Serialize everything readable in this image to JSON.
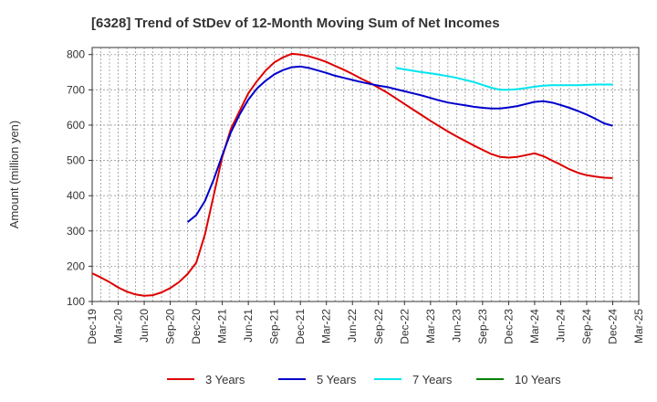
{
  "chart_data": {
    "type": "line",
    "title": "[6328]  Trend of StDev of 12-Month Moving Sum of Net Incomes",
    "ylabel": "Amount (million yen)",
    "xlabel": "",
    "ylim": [
      100,
      820
    ],
    "yticks": [
      100,
      200,
      300,
      400,
      500,
      600,
      700,
      800
    ],
    "grid": true,
    "legend_position": "bottom",
    "x_tick_labels": [
      "Dec-19",
      "Mar-20",
      "Jun-20",
      "Sep-20",
      "Dec-20",
      "Mar-21",
      "Jun-21",
      "Sep-21",
      "Dec-21",
      "Mar-22",
      "Jun-22",
      "Sep-22",
      "Dec-22",
      "Mar-23",
      "Jun-23",
      "Sep-23",
      "Dec-23",
      "Mar-24",
      "Jun-24",
      "Sep-24",
      "Dec-24",
      "Mar-25"
    ],
    "series": [
      {
        "name": "3 Years",
        "color": "#dd0000",
        "x": [
          "Dec-19",
          "Jan-20",
          "Feb-20",
          "Mar-20",
          "Apr-20",
          "May-20",
          "Jun-20",
          "Jul-20",
          "Aug-20",
          "Sep-20",
          "Oct-20",
          "Nov-20",
          "Dec-20",
          "Jan-21",
          "Feb-21",
          "Mar-21",
          "Apr-21",
          "May-21",
          "Jun-21",
          "Jul-21",
          "Aug-21",
          "Sep-21",
          "Oct-21",
          "Nov-21",
          "Dec-21",
          "Jan-22",
          "Feb-22",
          "Mar-22",
          "Apr-22",
          "May-22",
          "Jun-22",
          "Jul-22",
          "Aug-22",
          "Sep-22",
          "Oct-22",
          "Nov-22",
          "Dec-22",
          "Jan-23",
          "Feb-23",
          "Mar-23",
          "Apr-23",
          "May-23",
          "Jun-23",
          "Jul-23",
          "Aug-23",
          "Sep-23",
          "Oct-23",
          "Nov-23",
          "Dec-23",
          "Jan-24",
          "Feb-24",
          "Mar-24",
          "Apr-24",
          "May-24",
          "Jun-24",
          "Jul-24",
          "Aug-24",
          "Sep-24",
          "Oct-24",
          "Nov-24",
          "Dec-24"
        ],
        "values": [
          180,
          168,
          155,
          140,
          128,
          120,
          116,
          118,
          126,
          138,
          155,
          178,
          210,
          290,
          400,
          510,
          590,
          640,
          690,
          725,
          755,
          778,
          792,
          802,
          800,
          795,
          788,
          779,
          768,
          757,
          745,
          732,
          720,
          706,
          692,
          676,
          660,
          644,
          628,
          612,
          597,
          582,
          568,
          555,
          542,
          530,
          518,
          510,
          508,
          510,
          515,
          520,
          512,
          500,
          488,
          475,
          465,
          458,
          454,
          451,
          450
        ]
      },
      {
        "name": "5 Years",
        "color": "#0000cc",
        "x": [
          "Nov-20",
          "Dec-20",
          "Jan-21",
          "Feb-21",
          "Mar-21",
          "Apr-21",
          "May-21",
          "Jun-21",
          "Jul-21",
          "Aug-21",
          "Sep-21",
          "Oct-21",
          "Nov-21",
          "Dec-21",
          "Jan-22",
          "Feb-22",
          "Mar-22",
          "Apr-22",
          "May-22",
          "Jun-22",
          "Jul-22",
          "Aug-22",
          "Sep-22",
          "Oct-22",
          "Nov-22",
          "Dec-22",
          "Jan-23",
          "Feb-23",
          "Mar-23",
          "Apr-23",
          "May-23",
          "Jun-23",
          "Jul-23",
          "Aug-23",
          "Sep-23",
          "Oct-23",
          "Nov-23",
          "Dec-23",
          "Jan-24",
          "Feb-24",
          "Mar-24",
          "Apr-24",
          "May-24",
          "Jun-24",
          "Jul-24",
          "Aug-24",
          "Sep-24",
          "Oct-24",
          "Nov-24",
          "Dec-24"
        ],
        "values": [
          325,
          345,
          385,
          445,
          515,
          580,
          630,
          672,
          704,
          726,
          744,
          756,
          764,
          766,
          762,
          755,
          748,
          740,
          734,
          728,
          722,
          717,
          712,
          708,
          702,
          696,
          690,
          684,
          677,
          670,
          664,
          660,
          656,
          652,
          649,
          647,
          647,
          650,
          654,
          660,
          666,
          668,
          664,
          657,
          649,
          640,
          630,
          618,
          605,
          598
        ]
      },
      {
        "name": "7 Years",
        "color": "#00e5ee",
        "x": [
          "Nov-22",
          "Dec-22",
          "Jan-23",
          "Feb-23",
          "Mar-23",
          "Apr-23",
          "May-23",
          "Jun-23",
          "Jul-23",
          "Aug-23",
          "Sep-23",
          "Oct-23",
          "Nov-23",
          "Dec-23",
          "Jan-24",
          "Feb-24",
          "Mar-24",
          "Apr-24",
          "May-24",
          "Jun-24",
          "Jul-24",
          "Aug-24",
          "Sep-24",
          "Oct-24",
          "Nov-24",
          "Dec-24"
        ],
        "values": [
          762,
          758,
          754,
          750,
          747,
          743,
          739,
          734,
          728,
          722,
          714,
          706,
          700,
          700,
          702,
          705,
          709,
          712,
          713,
          713,
          713,
          713,
          714,
          715,
          715,
          715
        ]
      },
      {
        "name": "10 Years",
        "color": "#008000",
        "x": [],
        "values": []
      }
    ]
  }
}
